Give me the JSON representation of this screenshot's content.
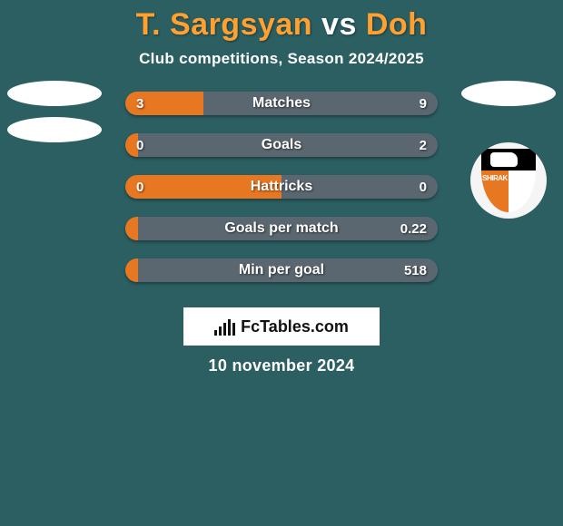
{
  "background_color": "#2b5f62",
  "title": {
    "player1": "T. Sargsyan",
    "vs": "vs",
    "player2": "Doh",
    "player_color": "#ffa030",
    "vs_color": "#ffffff"
  },
  "subtitle": "Club competitions, Season 2024/2025",
  "badges": {
    "left": {
      "ellipses": 2
    },
    "right": {
      "ellipses": 1,
      "club": "SHIRAK",
      "club_colors": {
        "top": "#000000",
        "orange": "#e87722",
        "white": "#ffffff"
      }
    }
  },
  "bars": {
    "left_color": "#e87722",
    "right_color": "#5b6770",
    "track_width": 344,
    "height": 26,
    "gap": 20,
    "items": [
      {
        "label": "Matches",
        "left_value": "3",
        "right_value": "9",
        "left_pct": 25,
        "right_pct": 75
      },
      {
        "label": "Goals",
        "left_value": "0",
        "right_value": "2",
        "left_pct": 4,
        "right_pct": 96
      },
      {
        "label": "Hattricks",
        "left_value": "0",
        "right_value": "0",
        "left_pct": 50,
        "right_pct": 50
      },
      {
        "label": "Goals per match",
        "left_value": "",
        "right_value": "0.22",
        "left_pct": 4,
        "right_pct": 96
      },
      {
        "label": "Min per goal",
        "left_value": "",
        "right_value": "518",
        "left_pct": 4,
        "right_pct": 96
      }
    ]
  },
  "footer_badge": {
    "text": "FcTables.com",
    "icon_bar_heights": [
      6,
      10,
      14,
      18,
      14
    ]
  },
  "date": "10 november 2024"
}
